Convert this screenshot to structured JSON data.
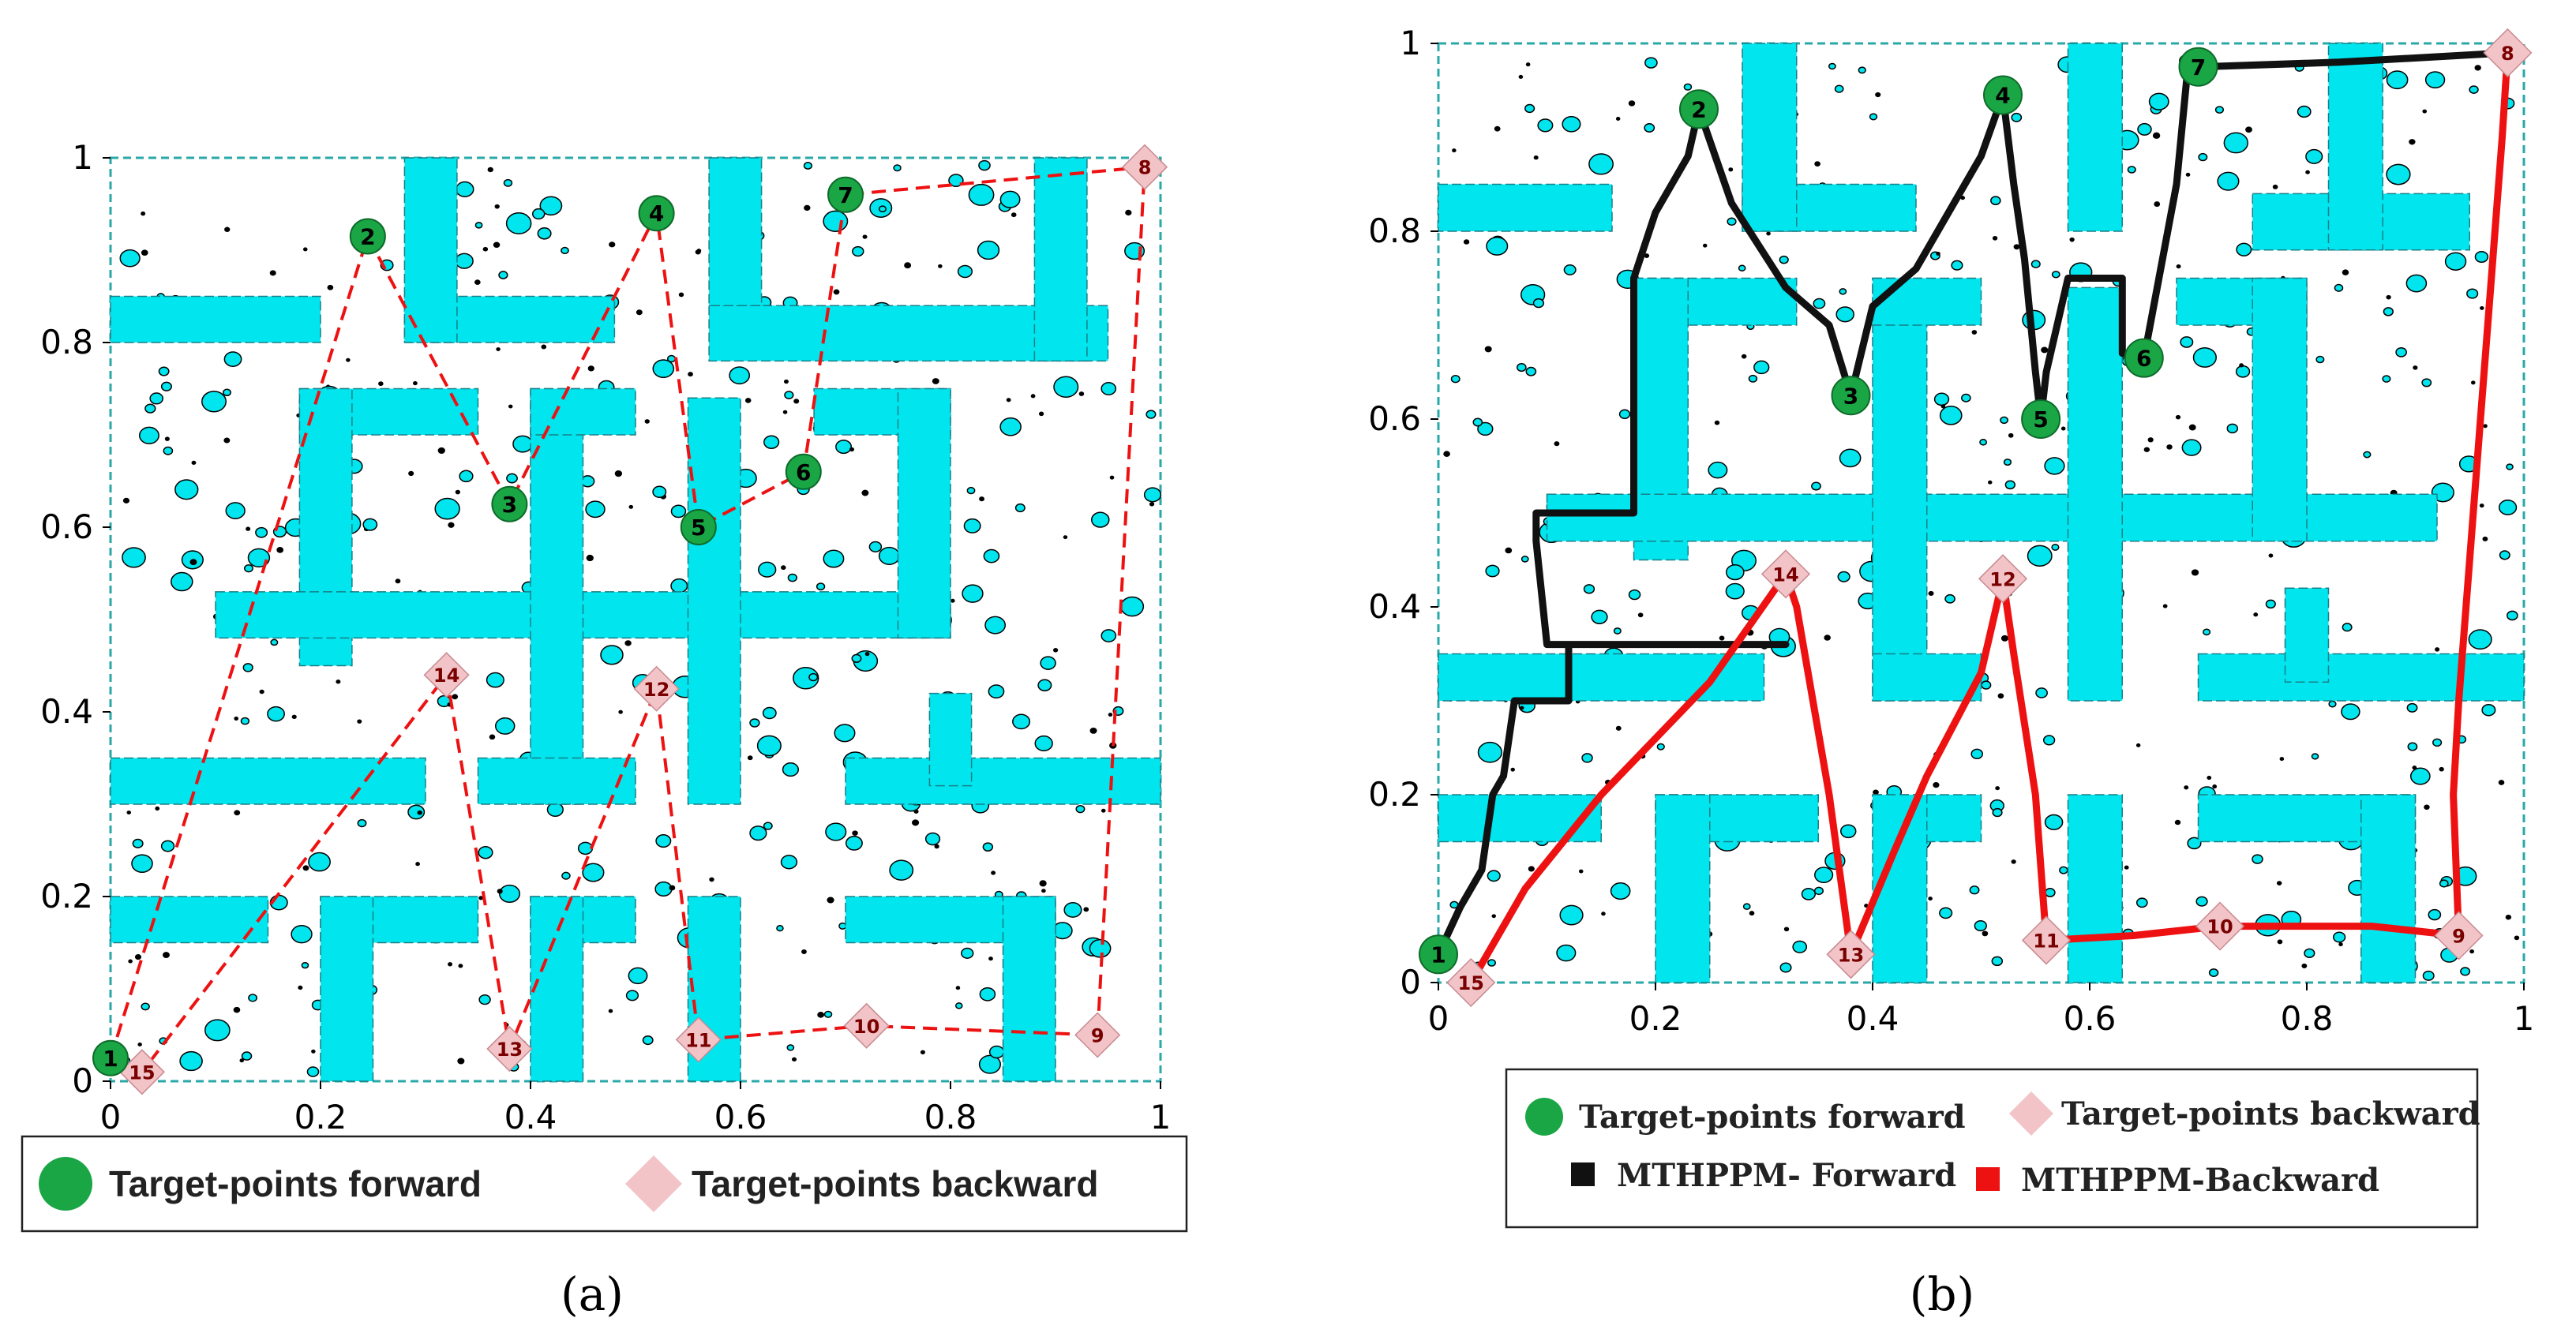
{
  "chart_data": [
    {
      "panel": "a",
      "type": "scatter",
      "caption": "(a)",
      "xlim": [
        0,
        1
      ],
      "ylim": [
        0,
        1
      ],
      "x_ticks": [
        "0",
        "0.2",
        "0.4",
        "0.6",
        "0.8",
        "1"
      ],
      "y_ticks": [
        "0",
        "0.2",
        "0.4",
        "0.6",
        "0.8",
        "1"
      ],
      "legend": [
        "Target-points forward",
        "Target-points backward"
      ],
      "legend_placement": "bottom",
      "obstacles": [
        [
          0,
          0.8,
          0.2,
          0.85
        ],
        [
          0.28,
          0.8,
          0.48,
          0.85
        ],
        [
          0.28,
          0.8,
          0.33,
          1.0
        ],
        [
          0.57,
          0.78,
          0.95,
          0.84
        ],
        [
          0.88,
          0.78,
          0.93,
          1.0
        ],
        [
          0.57,
          0.84,
          0.62,
          1.0
        ],
        [
          0.18,
          0.7,
          0.35,
          0.75
        ],
        [
          0.18,
          0.45,
          0.23,
          0.75
        ],
        [
          0.1,
          0.48,
          0.8,
          0.53
        ],
        [
          0.4,
          0.3,
          0.45,
          0.75
        ],
        [
          0.4,
          0.7,
          0.5,
          0.75
        ],
        [
          0.55,
          0.3,
          0.6,
          0.74
        ],
        [
          0.67,
          0.7,
          0.8,
          0.75
        ],
        [
          0.75,
          0.48,
          0.8,
          0.75
        ],
        [
          0,
          0.3,
          0.3,
          0.35
        ],
        [
          0.35,
          0.3,
          0.5,
          0.35
        ],
        [
          0.7,
          0.3,
          1.0,
          0.35
        ],
        [
          0.78,
          0.32,
          0.82,
          0.42
        ],
        [
          0,
          0.15,
          0.15,
          0.2
        ],
        [
          0.2,
          0.15,
          0.35,
          0.2
        ],
        [
          0.2,
          0.0,
          0.25,
          0.2
        ],
        [
          0.4,
          0.15,
          0.5,
          0.2
        ],
        [
          0.4,
          0.0,
          0.45,
          0.2
        ],
        [
          0.55,
          0.0,
          0.6,
          0.2
        ],
        [
          0.7,
          0.15,
          0.9,
          0.2
        ],
        [
          0.85,
          0.0,
          0.9,
          0.2
        ]
      ],
      "forward_points": [
        {
          "label": "1",
          "x": 0.0,
          "y": 0.025
        },
        {
          "label": "2",
          "x": 0.245,
          "y": 0.915
        },
        {
          "label": "3",
          "x": 0.38,
          "y": 0.625
        },
        {
          "label": "4",
          "x": 0.52,
          "y": 0.94
        },
        {
          "label": "5",
          "x": 0.56,
          "y": 0.6
        },
        {
          "label": "6",
          "x": 0.66,
          "y": 0.66
        },
        {
          "label": "7",
          "x": 0.7,
          "y": 0.96
        },
        {
          "label": "8",
          "x": 0.985,
          "y": 0.99
        }
      ],
      "backward_points": [
        {
          "label": "8",
          "x": 0.985,
          "y": 0.99
        },
        {
          "label": "9",
          "x": 0.94,
          "y": 0.05
        },
        {
          "label": "10",
          "x": 0.72,
          "y": 0.06
        },
        {
          "label": "11",
          "x": 0.56,
          "y": 0.045
        },
        {
          "label": "12",
          "x": 0.52,
          "y": 0.425
        },
        {
          "label": "13",
          "x": 0.38,
          "y": 0.035
        },
        {
          "label": "14",
          "x": 0.32,
          "y": 0.44
        },
        {
          "label": "15",
          "x": 0.03,
          "y": 0.01
        }
      ]
    },
    {
      "panel": "b",
      "type": "line",
      "caption": "(b)",
      "xlim": [
        0,
        1
      ],
      "ylim": [
        0,
        1
      ],
      "x_ticks": [
        "0",
        "0.2",
        "0.4",
        "0.6",
        "0.8",
        "1"
      ],
      "y_ticks": [
        "0",
        "0.2",
        "0.4",
        "0.6",
        "0.8",
        "1"
      ],
      "legend": [
        "Target-points forward",
        "Target-points backward",
        "MTHPPM- Forward",
        "MTHPPM-Backward"
      ],
      "legend_placement": "bottom",
      "obstacles": [
        [
          0,
          0.8,
          0.16,
          0.85
        ],
        [
          0.28,
          0.8,
          0.44,
          0.85
        ],
        [
          0.28,
          0.8,
          0.33,
          1.0
        ],
        [
          0.75,
          0.78,
          0.95,
          0.84
        ],
        [
          0.82,
          0.78,
          0.87,
          1.0
        ],
        [
          0.58,
          0.8,
          0.63,
          1.0
        ],
        [
          0.18,
          0.7,
          0.33,
          0.75
        ],
        [
          0.18,
          0.45,
          0.23,
          0.75
        ],
        [
          0.1,
          0.47,
          0.92,
          0.52
        ],
        [
          0.4,
          0.3,
          0.45,
          0.75
        ],
        [
          0.4,
          0.7,
          0.5,
          0.75
        ],
        [
          0.58,
          0.3,
          0.63,
          0.74
        ],
        [
          0.68,
          0.7,
          0.8,
          0.75
        ],
        [
          0.75,
          0.47,
          0.8,
          0.75
        ],
        [
          0,
          0.3,
          0.3,
          0.35
        ],
        [
          0.4,
          0.3,
          0.5,
          0.35
        ],
        [
          0.7,
          0.3,
          1.0,
          0.35
        ],
        [
          0.78,
          0.32,
          0.82,
          0.42
        ],
        [
          0,
          0.15,
          0.15,
          0.2
        ],
        [
          0.2,
          0.15,
          0.35,
          0.2
        ],
        [
          0.2,
          0.0,
          0.25,
          0.2
        ],
        [
          0.4,
          0.15,
          0.5,
          0.2
        ],
        [
          0.4,
          0.0,
          0.45,
          0.2
        ],
        [
          0.58,
          0.0,
          0.63,
          0.2
        ],
        [
          0.7,
          0.15,
          0.9,
          0.2
        ],
        [
          0.85,
          0.0,
          0.9,
          0.2
        ]
      ],
      "forward_points": [
        {
          "label": "1",
          "x": 0.0,
          "y": 0.03
        },
        {
          "label": "2",
          "x": 0.24,
          "y": 0.93
        },
        {
          "label": "3",
          "x": 0.38,
          "y": 0.625
        },
        {
          "label": "4",
          "x": 0.52,
          "y": 0.945
        },
        {
          "label": "5",
          "x": 0.555,
          "y": 0.6
        },
        {
          "label": "6",
          "x": 0.65,
          "y": 0.665
        },
        {
          "label": "7",
          "x": 0.7,
          "y": 0.975
        },
        {
          "label": "8",
          "x": 0.985,
          "y": 0.99
        }
      ],
      "backward_points": [
        {
          "label": "8",
          "x": 0.985,
          "y": 0.99
        },
        {
          "label": "9",
          "x": 0.94,
          "y": 0.05
        },
        {
          "label": "10",
          "x": 0.72,
          "y": 0.06
        },
        {
          "label": "11",
          "x": 0.56,
          "y": 0.045
        },
        {
          "label": "12",
          "x": 0.52,
          "y": 0.43
        },
        {
          "label": "13",
          "x": 0.38,
          "y": 0.03
        },
        {
          "label": "14",
          "x": 0.32,
          "y": 0.435
        },
        {
          "label": "15",
          "x": 0.03,
          "y": 0.0
        }
      ],
      "series": [
        {
          "name": "MTHPPM- Forward",
          "color": "#111111",
          "points": [
            [
              0.0,
              0.03
            ],
            [
              0.02,
              0.08
            ],
            [
              0.04,
              0.12
            ],
            [
              0.05,
              0.2
            ],
            [
              0.06,
              0.22
            ],
            [
              0.07,
              0.3
            ],
            [
              0.12,
              0.3
            ],
            [
              0.12,
              0.36
            ],
            [
              0.3,
              0.36
            ],
            [
              0.32,
              0.36
            ],
            [
              0.1,
              0.36
            ],
            [
              0.09,
              0.47
            ],
            [
              0.09,
              0.5
            ],
            [
              0.18,
              0.5
            ],
            [
              0.18,
              0.75
            ],
            [
              0.2,
              0.82
            ],
            [
              0.23,
              0.88
            ],
            [
              0.24,
              0.93
            ],
            [
              0.27,
              0.83
            ],
            [
              0.32,
              0.74
            ],
            [
              0.36,
              0.7
            ],
            [
              0.38,
              0.625
            ],
            [
              0.4,
              0.72
            ],
            [
              0.44,
              0.76
            ],
            [
              0.5,
              0.88
            ],
            [
              0.52,
              0.945
            ],
            [
              0.53,
              0.85
            ],
            [
              0.54,
              0.77
            ],
            [
              0.55,
              0.65
            ],
            [
              0.555,
              0.6
            ],
            [
              0.56,
              0.65
            ],
            [
              0.58,
              0.75
            ],
            [
              0.63,
              0.75
            ],
            [
              0.63,
              0.67
            ],
            [
              0.65,
              0.665
            ],
            [
              0.68,
              0.85
            ],
            [
              0.69,
              0.97
            ],
            [
              0.7,
              0.975
            ],
            [
              0.83,
              0.98
            ],
            [
              0.985,
              0.99
            ]
          ]
        },
        {
          "name": "MTHPPM-Backward",
          "color": "#ee1111",
          "points": [
            [
              0.985,
              0.99
            ],
            [
              0.98,
              0.9
            ],
            [
              0.97,
              0.75
            ],
            [
              0.96,
              0.6
            ],
            [
              0.95,
              0.45
            ],
            [
              0.94,
              0.3
            ],
            [
              0.935,
              0.2
            ],
            [
              0.94,
              0.05
            ],
            [
              0.86,
              0.06
            ],
            [
              0.72,
              0.06
            ],
            [
              0.64,
              0.05
            ],
            [
              0.56,
              0.045
            ],
            [
              0.55,
              0.2
            ],
            [
              0.53,
              0.35
            ],
            [
              0.52,
              0.43
            ],
            [
              0.5,
              0.33
            ],
            [
              0.45,
              0.22
            ],
            [
              0.42,
              0.14
            ],
            [
              0.38,
              0.03
            ],
            [
              0.36,
              0.2
            ],
            [
              0.33,
              0.4
            ],
            [
              0.32,
              0.435
            ],
            [
              0.25,
              0.32
            ],
            [
              0.15,
              0.2
            ],
            [
              0.08,
              0.1
            ],
            [
              0.03,
              0.0
            ]
          ]
        }
      ]
    }
  ],
  "colors": {
    "obstacle": "#00e5ee",
    "dot_fill": "#00e5ee",
    "forward_marker": "#1aa645",
    "backward_marker": "#f2c4c8",
    "forward_path": "#111111",
    "backward_path": "#ee1111",
    "dashed_route": "#ee1111"
  },
  "icons": {
    "forward_marker": "green-circle-icon",
    "backward_marker": "pink-diamond-icon"
  }
}
